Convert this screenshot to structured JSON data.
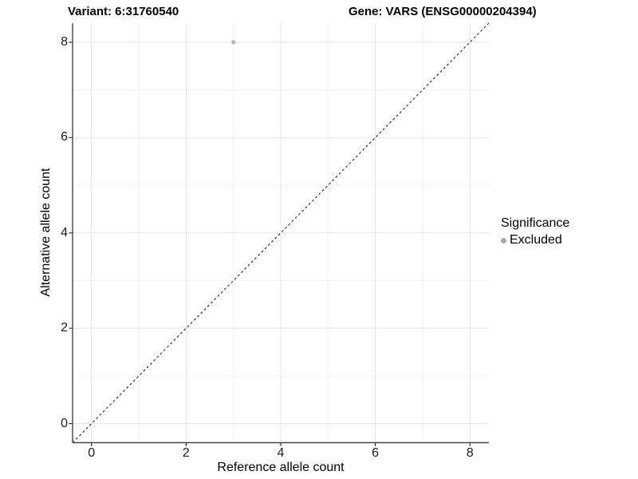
{
  "header": {
    "variant_title": "Variant: 6:31760540",
    "gene_title": "Gene: VARS (ENSG00000204394)"
  },
  "legend": {
    "title": "Significance",
    "items": [
      {
        "label": "Excluded",
        "color": "#a8a8a8"
      }
    ]
  },
  "chart_data": {
    "type": "scatter",
    "title": "Variant: 6:31760540   Gene: VARS (ENSG00000204394)",
    "xlabel": "Reference allele count",
    "ylabel": "Alternative allele count",
    "xlim": [
      -0.4,
      8.4
    ],
    "ylim": [
      -0.4,
      8.4
    ],
    "x_ticks": [
      0,
      2,
      4,
      6,
      8
    ],
    "y_ticks": [
      0,
      2,
      4,
      6,
      8
    ],
    "x_minor_ticks": [
      1,
      3,
      5,
      7
    ],
    "y_minor_ticks": [
      1,
      3,
      5,
      7
    ],
    "grid": true,
    "legend_position": "right",
    "series": [
      {
        "name": "Excluded",
        "color": "#b4b4b4",
        "points": [
          {
            "x": 3,
            "y": 8
          }
        ]
      }
    ],
    "reference_line": {
      "type": "identity",
      "equation": "y = x",
      "style": "dashed",
      "color": "#111111"
    }
  },
  "style_colors": {
    "axis_line": "#454545",
    "tick_mark": "#333333",
    "grid_major": "#e4e4e4",
    "grid_minor": "#f0f0f0",
    "background": "#ffffff"
  }
}
